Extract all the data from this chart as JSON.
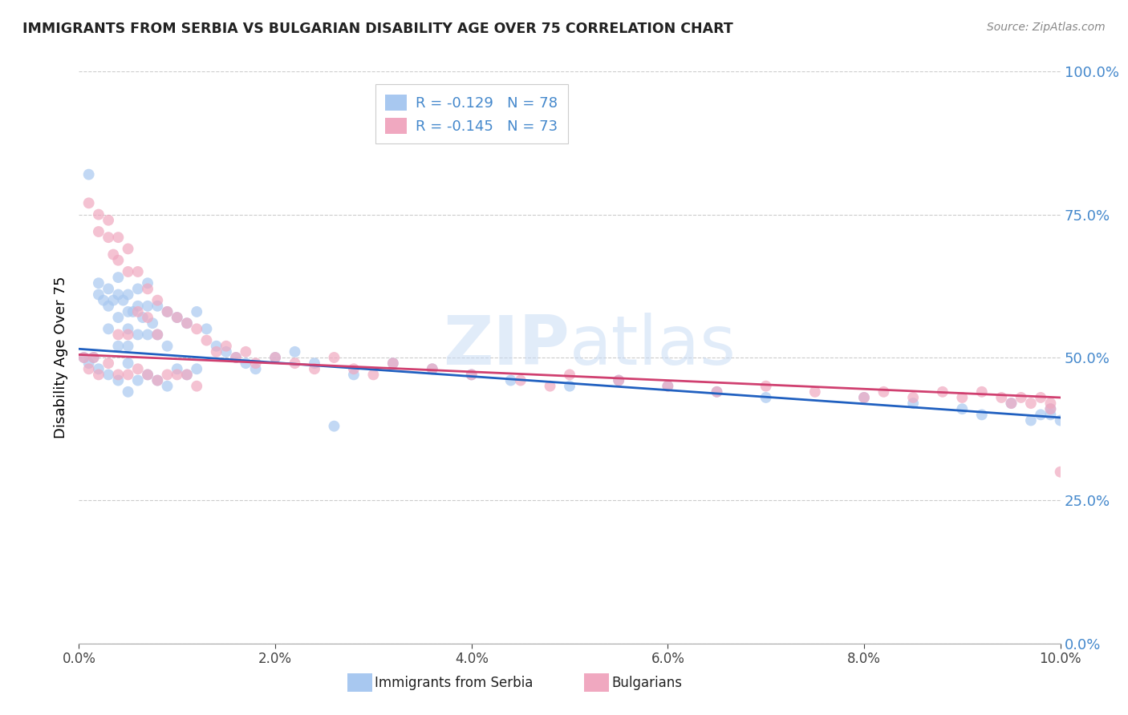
{
  "title": "IMMIGRANTS FROM SERBIA VS BULGARIAN DISABILITY AGE OVER 75 CORRELATION CHART",
  "source": "Source: ZipAtlas.com",
  "ylabel": "Disability Age Over 75",
  "xlabel_blue": "Immigrants from Serbia",
  "xlabel_pink": "Bulgarians",
  "x_min": 0.0,
  "x_max": 0.1,
  "y_min": 0.0,
  "y_max": 1.0,
  "blue_R": -0.129,
  "blue_N": 78,
  "pink_R": -0.145,
  "pink_N": 73,
  "blue_color": "#a8c8f0",
  "pink_color": "#f0a8c0",
  "blue_line_color": "#2060c0",
  "pink_line_color": "#d04070",
  "right_axis_color": "#4488cc",
  "watermark_zip": "ZIP",
  "watermark_atlas": "atlas",
  "blue_x": [
    0.0005,
    0.001,
    0.001,
    0.0015,
    0.002,
    0.002,
    0.002,
    0.0025,
    0.003,
    0.003,
    0.003,
    0.003,
    0.0035,
    0.004,
    0.004,
    0.004,
    0.004,
    0.004,
    0.0045,
    0.005,
    0.005,
    0.005,
    0.005,
    0.005,
    0.005,
    0.0055,
    0.006,
    0.006,
    0.006,
    0.006,
    0.0065,
    0.007,
    0.007,
    0.007,
    0.007,
    0.0075,
    0.008,
    0.008,
    0.008,
    0.009,
    0.009,
    0.009,
    0.01,
    0.01,
    0.011,
    0.011,
    0.012,
    0.012,
    0.013,
    0.014,
    0.015,
    0.016,
    0.017,
    0.018,
    0.02,
    0.022,
    0.024,
    0.026,
    0.028,
    0.032,
    0.036,
    0.04,
    0.044,
    0.05,
    0.055,
    0.06,
    0.065,
    0.07,
    0.08,
    0.085,
    0.09,
    0.092,
    0.095,
    0.097,
    0.098,
    0.099,
    0.099,
    0.1
  ],
  "blue_y": [
    0.5,
    0.82,
    0.49,
    0.5,
    0.63,
    0.61,
    0.48,
    0.6,
    0.62,
    0.59,
    0.55,
    0.47,
    0.6,
    0.64,
    0.61,
    0.57,
    0.52,
    0.46,
    0.6,
    0.61,
    0.58,
    0.55,
    0.52,
    0.49,
    0.44,
    0.58,
    0.62,
    0.59,
    0.54,
    0.46,
    0.57,
    0.63,
    0.59,
    0.54,
    0.47,
    0.56,
    0.59,
    0.54,
    0.46,
    0.58,
    0.52,
    0.45,
    0.57,
    0.48,
    0.56,
    0.47,
    0.58,
    0.48,
    0.55,
    0.52,
    0.51,
    0.5,
    0.49,
    0.48,
    0.5,
    0.51,
    0.49,
    0.38,
    0.47,
    0.49,
    0.48,
    0.47,
    0.46,
    0.45,
    0.46,
    0.45,
    0.44,
    0.43,
    0.43,
    0.42,
    0.41,
    0.4,
    0.42,
    0.39,
    0.4,
    0.41,
    0.4,
    0.39
  ],
  "pink_x": [
    0.0005,
    0.001,
    0.001,
    0.0015,
    0.002,
    0.002,
    0.002,
    0.003,
    0.003,
    0.003,
    0.0035,
    0.004,
    0.004,
    0.004,
    0.004,
    0.005,
    0.005,
    0.005,
    0.005,
    0.006,
    0.006,
    0.006,
    0.007,
    0.007,
    0.007,
    0.008,
    0.008,
    0.008,
    0.009,
    0.009,
    0.01,
    0.01,
    0.011,
    0.011,
    0.012,
    0.012,
    0.013,
    0.014,
    0.015,
    0.016,
    0.017,
    0.018,
    0.02,
    0.022,
    0.024,
    0.026,
    0.028,
    0.03,
    0.032,
    0.036,
    0.04,
    0.045,
    0.048,
    0.05,
    0.055,
    0.06,
    0.065,
    0.07,
    0.075,
    0.08,
    0.082,
    0.085,
    0.088,
    0.09,
    0.092,
    0.094,
    0.095,
    0.096,
    0.097,
    0.098,
    0.099,
    0.099,
    0.1
  ],
  "pink_y": [
    0.5,
    0.77,
    0.48,
    0.5,
    0.75,
    0.72,
    0.47,
    0.74,
    0.71,
    0.49,
    0.68,
    0.71,
    0.67,
    0.54,
    0.47,
    0.69,
    0.65,
    0.54,
    0.47,
    0.65,
    0.58,
    0.48,
    0.62,
    0.57,
    0.47,
    0.6,
    0.54,
    0.46,
    0.58,
    0.47,
    0.57,
    0.47,
    0.56,
    0.47,
    0.55,
    0.45,
    0.53,
    0.51,
    0.52,
    0.5,
    0.51,
    0.49,
    0.5,
    0.49,
    0.48,
    0.5,
    0.48,
    0.47,
    0.49,
    0.48,
    0.47,
    0.46,
    0.45,
    0.47,
    0.46,
    0.45,
    0.44,
    0.45,
    0.44,
    0.43,
    0.44,
    0.43,
    0.44,
    0.43,
    0.44,
    0.43,
    0.42,
    0.43,
    0.42,
    0.43,
    0.42,
    0.41,
    0.3
  ],
  "blue_line_x0": 0.0,
  "blue_line_y0": 0.515,
  "blue_line_x1": 0.1,
  "blue_line_y1": 0.395,
  "pink_line_x0": 0.0,
  "pink_line_y0": 0.505,
  "pink_line_x1": 0.1,
  "pink_line_y1": 0.43
}
